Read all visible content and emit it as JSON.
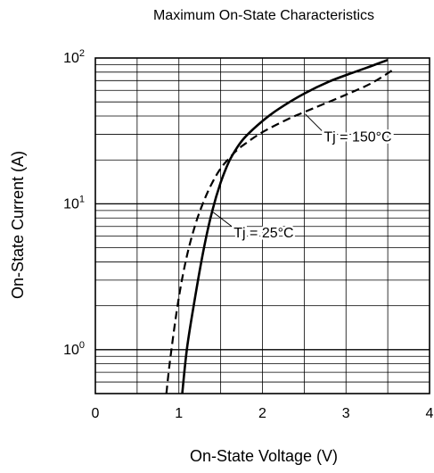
{
  "chart_data": {
    "type": "line",
    "title": "Maximum On-State Characteristics",
    "xlabel": "On-State Voltage  (V)",
    "ylabel": "On-State Current  (A)",
    "xlim": [
      0,
      4
    ],
    "ylim": [
      0.5,
      100
    ],
    "yscale": "log",
    "grid": true,
    "x_ticks": [
      {
        "value": 0,
        "label": "0"
      },
      {
        "value": 1,
        "label": "1"
      },
      {
        "value": 2,
        "label": "2"
      },
      {
        "value": 3,
        "label": "3"
      },
      {
        "value": 4,
        "label": "4"
      }
    ],
    "y_ticks": [
      {
        "value": 1,
        "base": "10",
        "exp": "0"
      },
      {
        "value": 10,
        "base": "10",
        "exp": "1"
      },
      {
        "value": 100,
        "base": "10",
        "exp": "2"
      }
    ],
    "series": [
      {
        "name": "Tj = 25°C",
        "style": "solid",
        "color": "#000000",
        "x": [
          1.04,
          1.1,
          1.2,
          1.3,
          1.4,
          1.5,
          1.6,
          1.7,
          1.8,
          2.0,
          2.2,
          2.5,
          2.8,
          3.1,
          3.3,
          3.5
        ],
        "y": [
          0.5,
          1.05,
          2.4,
          5.0,
          9.0,
          14.0,
          19.5,
          24.5,
          29.0,
          37.0,
          45.0,
          57.0,
          69.0,
          80.0,
          88.0,
          97.0
        ]
      },
      {
        "name": "Tj = 150°C",
        "style": "dashed",
        "color": "#000000",
        "x": [
          0.85,
          0.9,
          1.0,
          1.1,
          1.2,
          1.3,
          1.4,
          1.5,
          1.6,
          1.7,
          1.8,
          2.0,
          2.3,
          2.6,
          3.0,
          3.3,
          3.55
        ],
        "y": [
          0.5,
          0.9,
          2.3,
          4.5,
          7.3,
          10.5,
          14.0,
          17.5,
          20.5,
          23.5,
          26.0,
          31.0,
          38.0,
          45.0,
          56.0,
          67.0,
          82.0
        ]
      }
    ],
    "annotations": [
      {
        "text": "Tj = 150°C",
        "series": "Tj = 150°C"
      },
      {
        "text": "Tj = 25°C",
        "series": "Tj = 25°C"
      }
    ]
  }
}
